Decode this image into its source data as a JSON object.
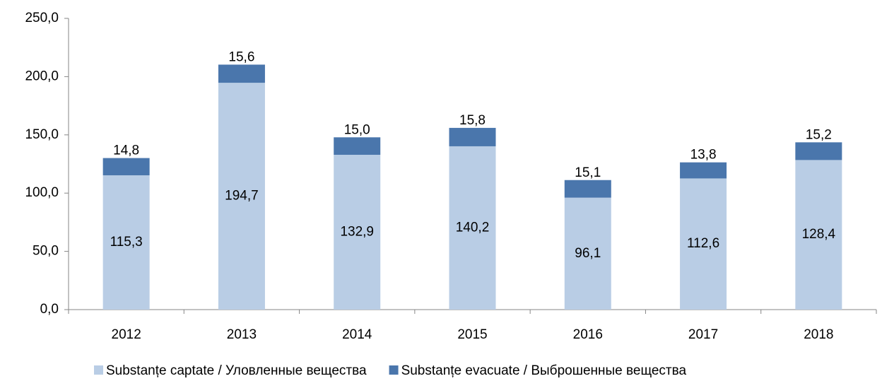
{
  "chart_data": {
    "type": "stacked_bar",
    "categories": [
      "2012",
      "2013",
      "2014",
      "2015",
      "2016",
      "2017",
      "2018"
    ],
    "series": [
      {
        "name": "Substanțe captate / Уловленные вещества",
        "color": "#b9cde5",
        "values": [
          115.3,
          194.7,
          132.9,
          140.2,
          96.1,
          112.6,
          128.4
        ],
        "value_labels": [
          "115,3",
          "194,7",
          "132,9",
          "140,2",
          "96,1",
          "112,6",
          "128,4"
        ]
      },
      {
        "name": "Substanțe evacuate / Выброшенные вещества",
        "color": "#4a76ac",
        "values": [
          14.8,
          15.6,
          15.0,
          15.8,
          15.1,
          13.8,
          15.2
        ],
        "value_labels": [
          "14,8",
          "15,6",
          "15,0",
          "15,8",
          "15,1",
          "13,8",
          "15,2"
        ]
      }
    ],
    "ylim": [
      0,
      250
    ],
    "yticks": [
      {
        "value": 0,
        "label": "0,0"
      },
      {
        "value": 50,
        "label": "50,0"
      },
      {
        "value": 100,
        "label": "100,0"
      },
      {
        "value": 150,
        "label": "150,0"
      },
      {
        "value": 200,
        "label": "200,0"
      },
      {
        "value": 250,
        "label": "250,0"
      }
    ],
    "legend": "bottom"
  }
}
